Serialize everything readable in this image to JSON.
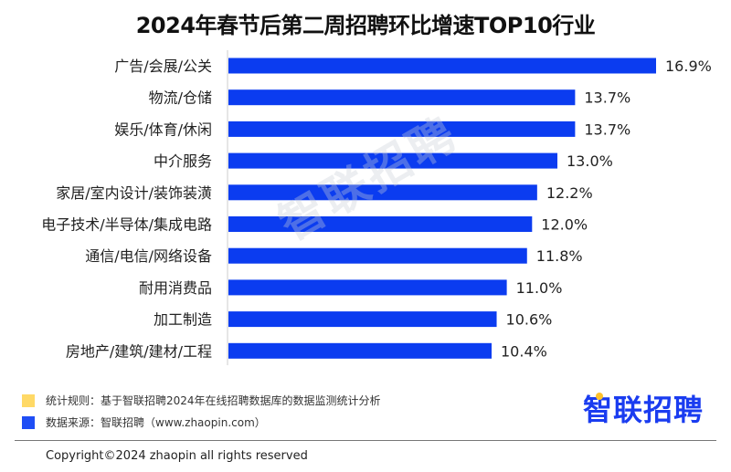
{
  "chart_data": {
    "type": "bar",
    "orientation": "horizontal",
    "title": "2024年春节后第二周招聘环比增速TOP10行业",
    "categories": [
      "广告/会展/公关",
      "物流/仓储",
      "娱乐/体育/休闲",
      "中介服务",
      "家居/室内设计/装饰装潢",
      "电子技术/半导体/集成电路",
      "通信/电信/网络设备",
      "耐用消费品",
      "加工制造",
      "房地产/建筑/建材/工程"
    ],
    "values": [
      16.9,
      13.7,
      13.7,
      13.0,
      12.2,
      12.0,
      11.8,
      11.0,
      10.6,
      10.4
    ],
    "labels": [
      "16.9%",
      "13.7%",
      "13.7%",
      "13.0%",
      "12.2%",
      "12.0%",
      "11.8%",
      "11.0%",
      "10.6%",
      "10.4%"
    ],
    "unit": "%",
    "xlim": [
      0,
      16.9
    ],
    "grid": false,
    "bar_color": "#0b3cf0"
  },
  "watermark": "智联招聘",
  "legend": [
    {
      "text": "统计规则：基于智联招聘2024年在线招聘数据库的数据监测统计分析",
      "color": "#ffd966"
    },
    {
      "text": "数据来源：智联招聘（www.zhaopin.com）",
      "color": "#1f4ef5"
    }
  ],
  "logo": "智联招聘",
  "copyright": "Copyright©2024 zhaopin all rights reserved"
}
